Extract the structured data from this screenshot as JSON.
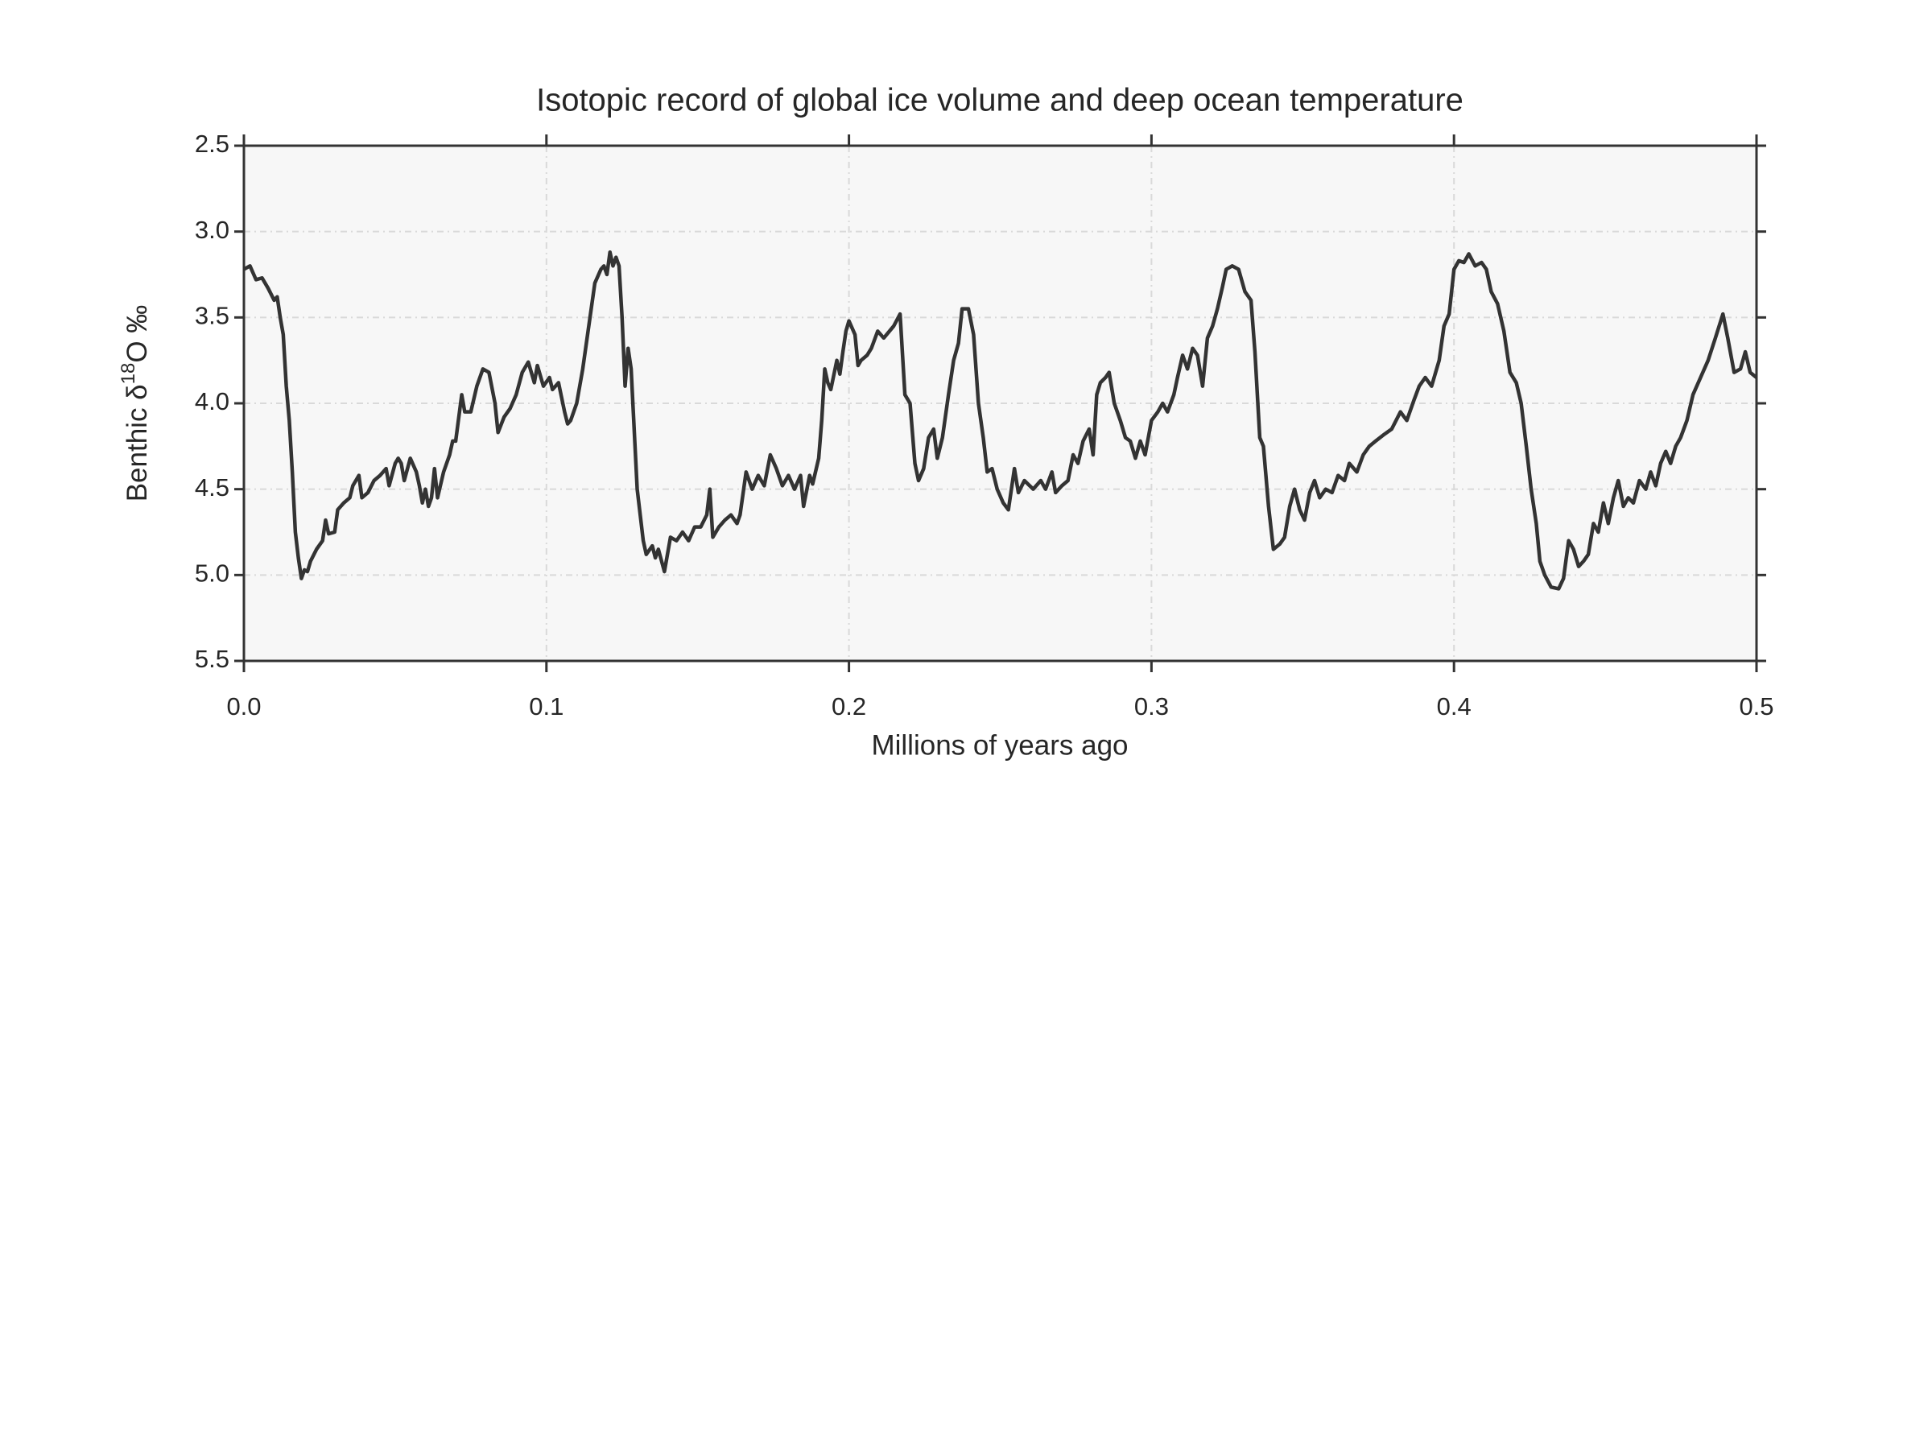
{
  "chart_data": {
    "type": "line",
    "title": "Isotopic record of global ice volume and deep ocean temperature",
    "xlabel": "Millions of years ago",
    "ylabel": [
      "Benthic δ",
      "18",
      "O ‰"
    ],
    "xlim": [
      0,
      0.5
    ],
    "xticks": [
      {
        "value": 0,
        "label": "0.0"
      },
      0.1,
      0.2,
      0.3,
      0.4,
      0.5
    ],
    "ylim": [
      2.5,
      5.5
    ],
    "y_inverted": true,
    "yticks": [
      2.5,
      {
        "value": 3,
        "label": "3.0"
      },
      3.5,
      {
        "value": 4,
        "label": "4.0"
      },
      4.5,
      {
        "value": 5,
        "label": "5.0"
      },
      5.5
    ],
    "grid": true,
    "color": "#333333",
    "x": [
      0,
      0.002,
      0.004,
      0.006,
      0.008,
      0.01,
      0.011,
      0.012,
      0.013,
      0.014,
      0.015,
      0.016,
      0.017,
      0.018,
      0.019,
      0.02,
      0.021,
      0.022,
      0.024,
      0.026,
      0.027,
      0.028,
      0.03,
      0.031,
      0.033,
      0.035,
      0.036,
      0.037,
      0.038,
      0.039,
      0.041,
      0.043,
      0.045,
      0.047,
      0.048,
      0.05,
      0.051,
      0.052,
      0.053,
      0.055,
      0.057,
      0.058,
      0.059,
      0.06,
      0.061,
      0.062,
      0.063,
      0.064,
      0.066,
      0.068,
      0.069,
      0.07,
      0.072,
      0.073,
      0.075,
      0.077,
      0.079,
      0.081,
      0.083,
      0.084,
      0.086,
      0.088,
      0.09,
      0.092,
      0.094,
      0.096,
      0.097,
      0.099,
      0.101,
      0.102,
      0.104,
      0.106,
      0.107,
      0.108,
      0.11,
      0.112,
      0.114,
      0.116,
      0.118,
      0.119,
      0.12,
      0.121,
      0.122,
      0.123,
      0.124,
      0.125,
      0.126,
      0.127,
      0.128,
      0.13,
      0.132,
      0.133,
      0.135,
      0.136,
      0.137,
      0.139,
      0.141,
      0.143,
      0.145,
      0.147,
      0.149,
      0.151,
      0.153,
      0.154,
      0.155,
      0.157,
      0.159,
      0.161,
      0.163,
      0.164,
      0.166,
      0.168,
      0.17,
      0.172,
      0.174,
      0.176,
      0.178,
      0.18,
      0.182,
      0.184,
      0.185,
      0.187,
      0.188,
      0.19,
      0.191,
      0.192,
      0.193,
      0.194,
      0.196,
      0.197,
      0.198,
      0.199,
      0.2,
      0.202,
      0.203,
      0.204,
      0.206,
      0.2074,
      0.2095,
      0.2115,
      0.2148,
      0.2169,
      0.2185,
      0.2202,
      0.2218,
      0.223,
      0.2247,
      0.2263,
      0.228,
      0.2292,
      0.2309,
      0.2329,
      0.2346,
      0.2362,
      0.2374,
      0.2395,
      0.2412,
      0.2428,
      0.2444,
      0.2457,
      0.2473,
      0.249,
      0.251,
      0.2527,
      0.2547,
      0.256,
      0.258,
      0.2609,
      0.2634,
      0.265,
      0.2671,
      0.2683,
      0.2704,
      0.2724,
      0.2741,
      0.2757,
      0.2774,
      0.2794,
      0.2807,
      0.2819,
      0.2831,
      0.2848,
      0.286,
      0.2877,
      0.2897,
      0.2914,
      0.293,
      0.2947,
      0.2963,
      0.2979,
      0.3,
      0.3021,
      0.3037,
      0.3053,
      0.3074,
      0.3086,
      0.3103,
      0.3119,
      0.3136,
      0.3152,
      0.3169,
      0.3185,
      0.3202,
      0.3218,
      0.3235,
      0.3247,
      0.3267,
      0.3288,
      0.3309,
      0.3329,
      0.3342,
      0.3358,
      0.337,
      0.3387,
      0.3403,
      0.3424,
      0.344,
      0.3457,
      0.3473,
      0.349,
      0.3506,
      0.3523,
      0.3539,
      0.3556,
      0.3576,
      0.3597,
      0.3617,
      0.3638,
      0.3654,
      0.3679,
      0.37,
      0.372,
      0.3741,
      0.377,
      0.3794,
      0.3823,
      0.3844,
      0.3868,
      0.3885,
      0.3905,
      0.3926,
      0.3951,
      0.3967,
      0.3984,
      0.4,
      0.4016,
      0.4033,
      0.4049,
      0.407,
      0.4091,
      0.4107,
      0.4123,
      0.4144,
      0.4165,
      0.4185,
      0.4206,
      0.4222,
      0.4239,
      0.4255,
      0.4272,
      0.4284,
      0.43,
      0.4321,
      0.4346,
      0.4362,
      0.4379,
      0.4395,
      0.4412,
      0.4428,
      0.4444,
      0.4461,
      0.4477,
      0.4494,
      0.451,
      0.4527,
      0.4543,
      0.456,
      0.4576,
      0.4593,
      0.4613,
      0.4634,
      0.465,
      0.4667,
      0.4683,
      0.47,
      0.4716,
      0.4733,
      0.4749,
      0.477,
      0.479,
      0.4815,
      0.484,
      0.4864,
      0.4889,
      0.4905,
      0.4926,
      0.4947,
      0.4963,
      0.4979,
      0.5
    ],
    "values": [
      3.22,
      3.2,
      3.28,
      3.27,
      3.33,
      3.4,
      3.38,
      3.5,
      3.6,
      3.9,
      4.1,
      4.4,
      4.75,
      4.9,
      5.02,
      4.97,
      4.98,
      4.92,
      4.85,
      4.8,
      4.68,
      4.76,
      4.75,
      4.62,
      4.58,
      4.55,
      4.48,
      4.45,
      4.42,
      4.55,
      4.52,
      4.45,
      4.42,
      4.38,
      4.48,
      4.35,
      4.32,
      4.35,
      4.45,
      4.32,
      4.4,
      4.48,
      4.58,
      4.5,
      4.6,
      4.55,
      4.38,
      4.55,
      4.4,
      4.3,
      4.22,
      4.22,
      3.95,
      4.05,
      4.05,
      3.9,
      3.8,
      3.82,
      4,
      4.17,
      4.08,
      4.03,
      3.95,
      3.82,
      3.76,
      3.88,
      3.78,
      3.9,
      3.85,
      3.92,
      3.88,
      4.05,
      4.12,
      4.1,
      4,
      3.8,
      3.55,
      3.3,
      3.22,
      3.2,
      3.25,
      3.12,
      3.2,
      3.15,
      3.2,
      3.5,
      3.9,
      3.68,
      3.8,
      4.5,
      4.8,
      4.88,
      4.83,
      4.9,
      4.85,
      4.98,
      4.78,
      4.8,
      4.75,
      4.8,
      4.72,
      4.72,
      4.65,
      4.5,
      4.78,
      4.72,
      4.68,
      4.65,
      4.7,
      4.65,
      4.4,
      4.5,
      4.42,
      4.48,
      4.3,
      4.38,
      4.48,
      4.42,
      4.5,
      4.42,
      4.6,
      4.42,
      4.47,
      4.32,
      4.1,
      3.8,
      3.88,
      3.92,
      3.75,
      3.83,
      3.7,
      3.58,
      3.52,
      3.6,
      3.78,
      3.75,
      3.72,
      3.68,
      3.58,
      3.62,
      3.55,
      3.48,
      3.95,
      4,
      4.35,
      4.45,
      4.38,
      4.2,
      4.15,
      4.32,
      4.2,
      3.95,
      3.75,
      3.65,
      3.45,
      3.45,
      3.6,
      4,
      4.2,
      4.4,
      4.38,
      4.5,
      4.58,
      4.62,
      4.38,
      4.52,
      4.45,
      4.5,
      4.45,
      4.5,
      4.4,
      4.52,
      4.48,
      4.45,
      4.3,
      4.35,
      4.22,
      4.15,
      4.3,
      3.95,
      3.88,
      3.85,
      3.82,
      4,
      4.1,
      4.2,
      4.22,
      4.32,
      4.22,
      4.3,
      4.1,
      4.05,
      4,
      4.05,
      3.95,
      3.85,
      3.72,
      3.8,
      3.68,
      3.72,
      3.9,
      3.62,
      3.55,
      3.45,
      3.32,
      3.22,
      3.2,
      3.22,
      3.35,
      3.4,
      3.7,
      4.2,
      4.25,
      4.6,
      4.85,
      4.82,
      4.78,
      4.6,
      4.5,
      4.62,
      4.68,
      4.52,
      4.45,
      4.55,
      4.5,
      4.52,
      4.42,
      4.45,
      4.35,
      4.4,
      4.3,
      4.25,
      4.22,
      4.18,
      4.15,
      4.05,
      4.1,
      3.98,
      3.9,
      3.85,
      3.9,
      3.75,
      3.55,
      3.48,
      3.22,
      3.17,
      3.18,
      3.13,
      3.2,
      3.18,
      3.22,
      3.35,
      3.42,
      3.58,
      3.82,
      3.88,
      4,
      4.25,
      4.5,
      4.7,
      4.92,
      5,
      5.07,
      5.08,
      5.02,
      4.8,
      4.85,
      4.95,
      4.92,
      4.88,
      4.7,
      4.75,
      4.58,
      4.7,
      4.55,
      4.45,
      4.6,
      4.55,
      4.58,
      4.45,
      4.5,
      4.4,
      4.48,
      4.35,
      4.28,
      4.35,
      4.25,
      4.2,
      4.1,
      3.95,
      3.85,
      3.75,
      3.62,
      3.48,
      3.62,
      3.82,
      3.8,
      3.7,
      3.82,
      3.85
    ]
  }
}
